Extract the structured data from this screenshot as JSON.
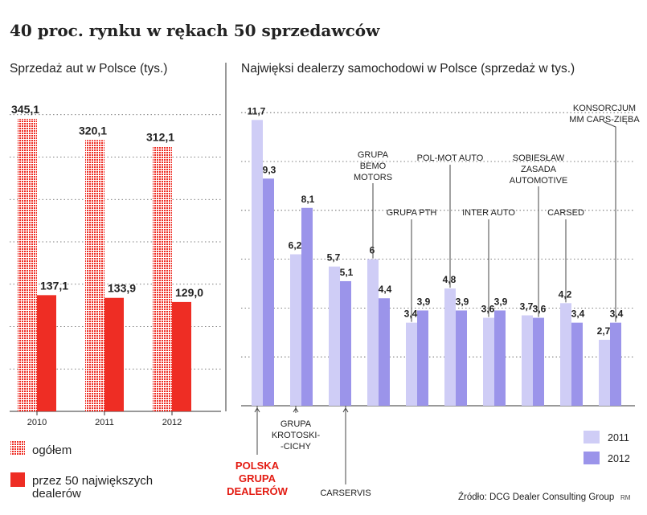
{
  "headline": "40 proc. rynku w rękach 50 sprzedawców",
  "source": "Źródło: DCG Dealer Consulting Group",
  "credit": "RM",
  "colors": {
    "total_red": "#ee2d24",
    "dealers_red": "#ee2d24",
    "light_purple": "#cfcdf6",
    "purple": "#9b94ea",
    "grid": "#555555",
    "highlight_text": "#e31b12",
    "text": "#222222"
  },
  "chart_data": [
    {
      "type": "bar",
      "title": "Sprzedaż aut w Polsce (tys.)",
      "categories": [
        "2010",
        "2011",
        "2012"
      ],
      "series": [
        {
          "name": "ogółem",
          "values": [
            345.1,
            320.1,
            312.1
          ],
          "labels": [
            "345,1",
            "320,1",
            "312,1"
          ],
          "pattern": "dotted"
        },
        {
          "name": "przez 50 największych dealerów",
          "values": [
            137.1,
            133.9,
            129.0
          ],
          "labels": [
            "137,1",
            "133,9",
            "129,0"
          ],
          "pattern": "solid"
        }
      ],
      "ylim": [
        0,
        400
      ],
      "grid": true,
      "legend": "bottom-left"
    },
    {
      "type": "bar",
      "title": "Najwięksi dealerzy samochodowi w Polsce (sprzedaż w tys.)",
      "categories": [
        "POLSKA GRUPA DEALERÓW",
        "GRUPA KROTOSKI--CICHY",
        "CARSERVIS",
        "GRUPA BEMO MOTORS",
        "GRUPA PTH",
        "POL-MOT AUTO",
        "INTER AUTO",
        "SOBIESŁAW ZASADA AUTOMOTIVE",
        "CARSED",
        "KONSORCJUM MM CARS-ZIĘBA"
      ],
      "series": [
        {
          "name": "2011",
          "values": [
            11.7,
            6.2,
            5.7,
            6,
            3.4,
            4.8,
            3.6,
            3.7,
            4.2,
            2.7
          ],
          "labels": [
            "11,7",
            "6,2",
            "5,7",
            "6",
            "3,4",
            "4,8",
            "3,6",
            "3,7",
            "4,2",
            "2,7"
          ]
        },
        {
          "name": "2012",
          "values": [
            9.3,
            8.1,
            5.1,
            4.4,
            3.9,
            3.9,
            3.9,
            3.6,
            3.4,
            3.4
          ],
          "labels": [
            "9,3",
            "8,1",
            "5,1",
            "4,4",
            "3,9",
            "3,9",
            "3,9",
            "3,6",
            "3,4",
            "3,4"
          ]
        }
      ],
      "ylim": [
        0,
        13
      ],
      "grid": true,
      "legend": "bottom-right",
      "highlight_category": "POLSKA GRUPA DEALERÓW"
    }
  ]
}
